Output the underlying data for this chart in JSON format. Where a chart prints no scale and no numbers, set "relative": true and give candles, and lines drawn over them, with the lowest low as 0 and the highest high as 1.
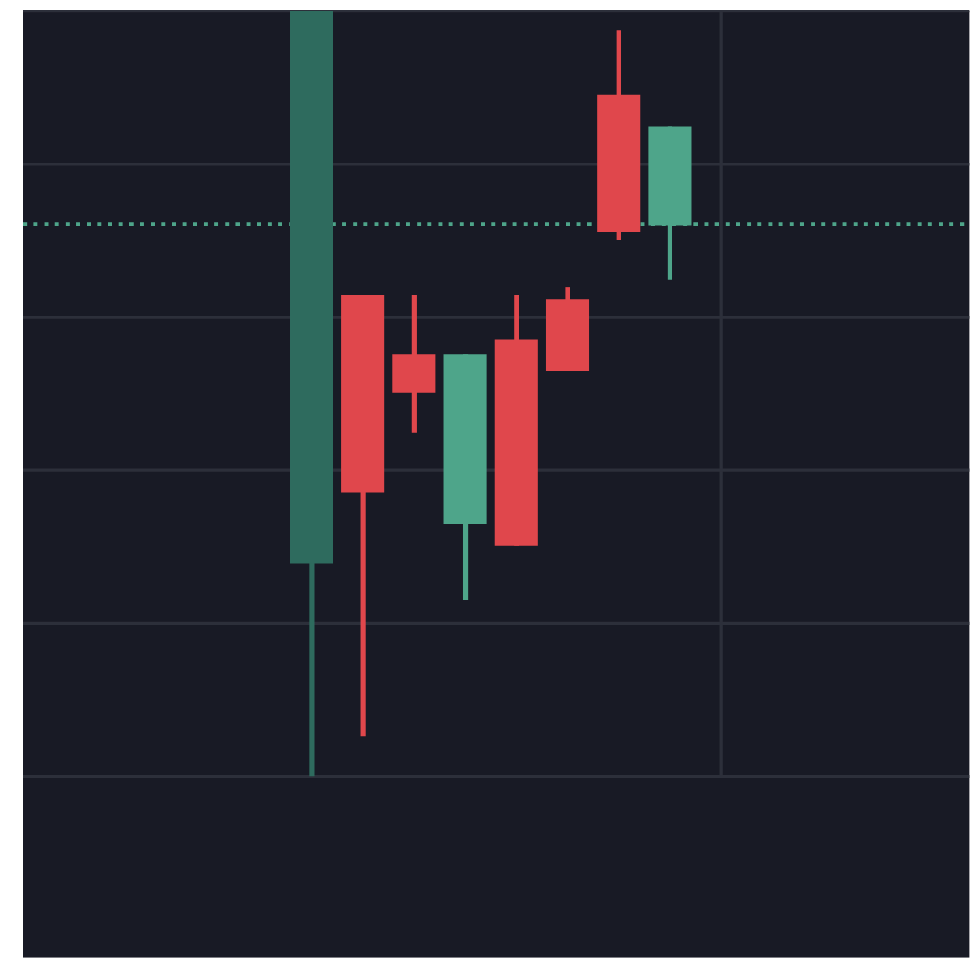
{
  "chart_data": {
    "type": "candlestick",
    "relative": true,
    "categories": [
      null,
      null,
      null,
      null,
      null,
      null,
      null,
      null
    ],
    "ohlc": [
      [
        0.278,
        1,
        0,
        1
      ],
      [
        0.629,
        0.629,
        0.052,
        0.371
      ],
      [
        0.551,
        0.629,
        0.449,
        0.501
      ],
      [
        0.33,
        0.551,
        0.231,
        0.551
      ],
      [
        0.571,
        0.629,
        0.301,
        0.301
      ],
      [
        0.623,
        0.639,
        0.53,
        0.53
      ],
      [
        0.891,
        0.975,
        0.701,
        0.711
      ],
      [
        0.72,
        0.849,
        0.649,
        0.849
      ]
    ],
    "colors": [
      "#2e6b5e",
      "#e0474c",
      "#e0474c",
      "#4ea58a",
      "#e0474c",
      "#e0474c",
      "#e0474c",
      "#4ea58a"
    ],
    "grid": true,
    "ref_lines": [
      {
        "axis": "y",
        "value": 0.722,
        "color": "#4ea58a",
        "line_style": "dotted"
      }
    ]
  }
}
